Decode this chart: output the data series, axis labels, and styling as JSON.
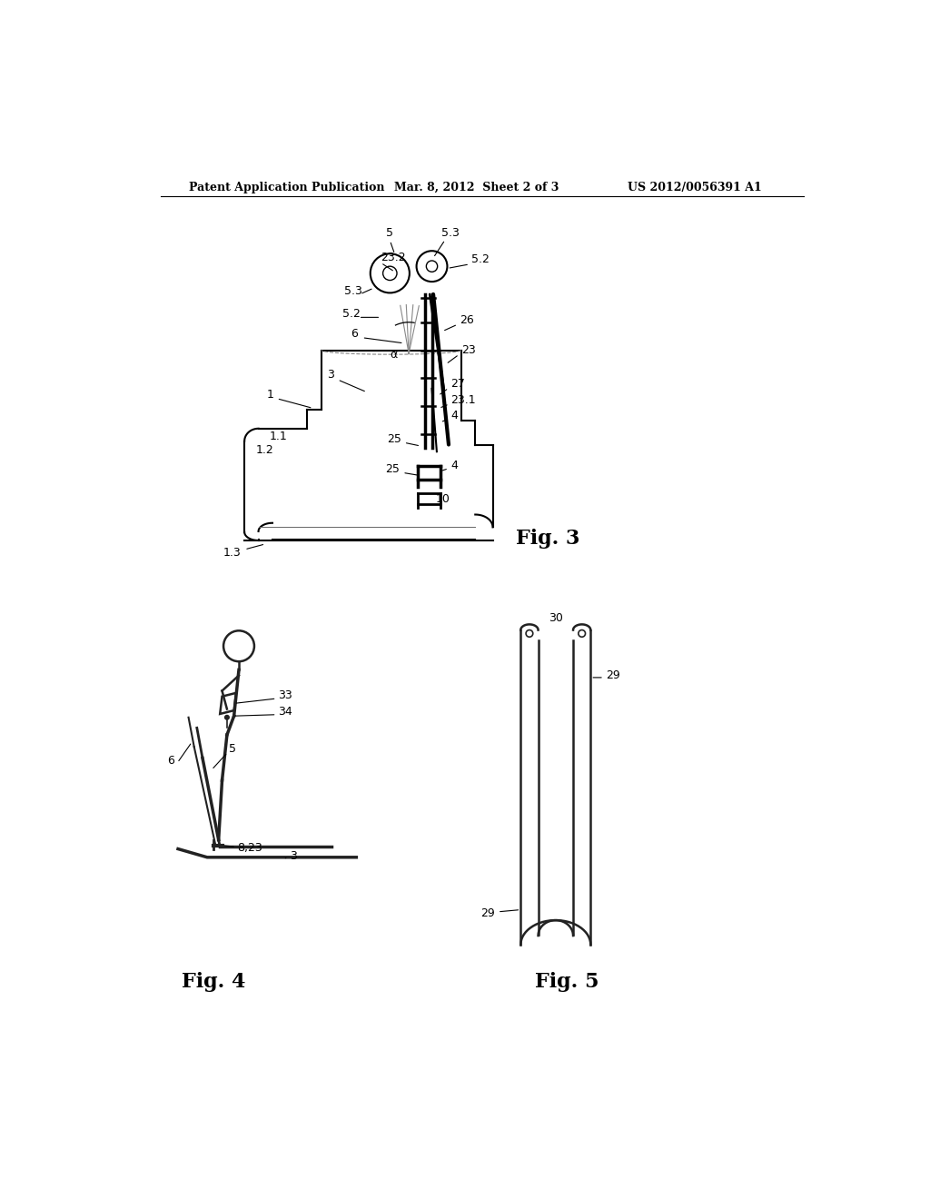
{
  "bg_color": "#ffffff",
  "header_left": "Patent Application Publication",
  "header_center": "Mar. 8, 2012  Sheet 2 of 3",
  "header_right": "US 2012/0056391 A1",
  "fig3_label": "Fig. 3",
  "fig4_label": "Fig. 4",
  "fig5_label": "Fig. 5"
}
